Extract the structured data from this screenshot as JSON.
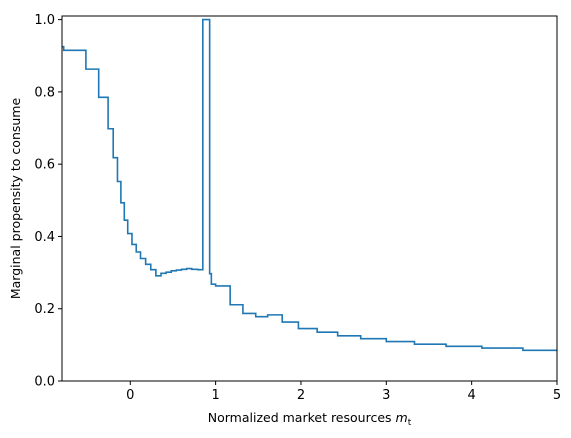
{
  "chart_data": {
    "type": "line",
    "title": "",
    "xlabel": "Normalized market resources",
    "xlabel_math": "m",
    "xlabel_sub": "t",
    "ylabel": "Marginal propensity to consume",
    "xlim": [
      -0.8,
      5
    ],
    "ylim": [
      0,
      1.01
    ],
    "xticks": [
      0,
      1,
      2,
      3,
      4,
      5
    ],
    "xtick_labels": [
      "0",
      "1",
      "2",
      "3",
      "4",
      "5"
    ],
    "yticks": [
      0.0,
      0.2,
      0.4,
      0.6,
      0.8,
      1.0
    ],
    "ytick_labels": [
      "0.0",
      "0.2",
      "0.4",
      "0.6",
      "0.8",
      "1.0"
    ],
    "grid": false,
    "line_color": "#1f77b4",
    "series": [
      {
        "step": "post",
        "x": [
          -0.8,
          -0.78,
          -0.52,
          -0.37,
          -0.26,
          -0.2,
          -0.15,
          -0.11,
          -0.07,
          -0.03,
          0.02,
          0.07,
          0.12,
          0.18,
          0.24,
          0.3,
          0.36,
          0.42,
          0.48,
          0.54,
          0.6,
          0.66,
          0.72,
          0.79,
          0.85,
          0.93,
          0.95,
          1.0,
          1.17,
          1.32,
          1.47,
          1.61,
          1.78,
          1.97,
          2.19,
          2.43,
          2.7,
          3.0,
          3.33,
          3.7,
          4.12,
          4.6,
          5.0
        ],
        "y": [
          0.925,
          0.915,
          0.863,
          0.785,
          0.698,
          0.618,
          0.552,
          0.493,
          0.445,
          0.408,
          0.378,
          0.357,
          0.339,
          0.323,
          0.308,
          0.291,
          0.298,
          0.301,
          0.305,
          0.307,
          0.309,
          0.311,
          0.309,
          0.308,
          1.0,
          0.297,
          0.268,
          0.263,
          0.211,
          0.187,
          0.178,
          0.183,
          0.163,
          0.145,
          0.135,
          0.125,
          0.117,
          0.109,
          0.102,
          0.096,
          0.091,
          0.085,
          0.082
        ]
      }
    ]
  }
}
